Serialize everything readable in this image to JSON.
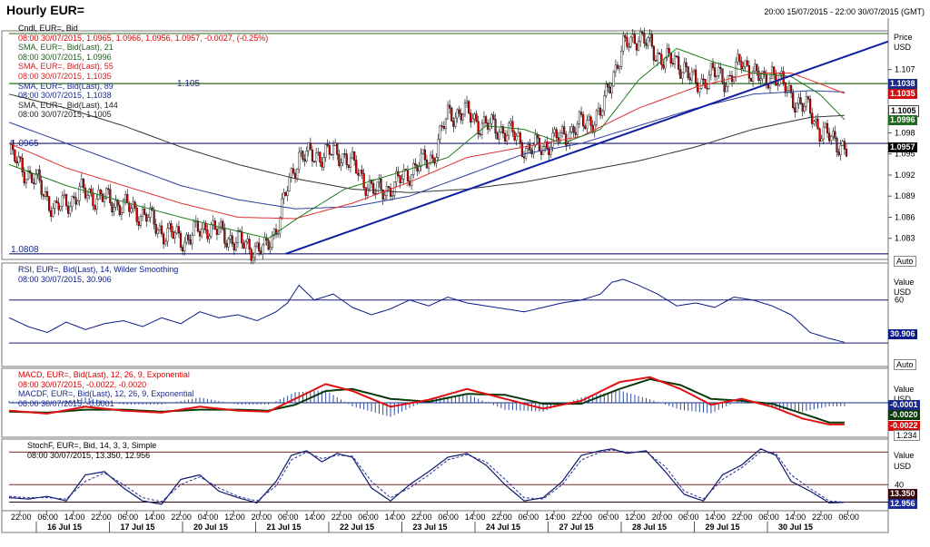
{
  "header": {
    "title": "Hourly EUR=",
    "range": "20:00 15/07/2015 - 22:00 30/07/2015 (GMT)"
  },
  "colors": {
    "up": "#ffffff",
    "down": "#d80000",
    "sma21": "#1e7a1e",
    "sma55": "#e03030",
    "sma89": "#2c3f9c",
    "sma144": "#333333",
    "trend": "#1020a0",
    "hline": "#1a1a7a",
    "hgreen": "#2d6b1f",
    "rsi": "#0a1a8a",
    "macd": "#e01010",
    "macdSignal": "#0a3a0a",
    "hist": "#2c4fa0",
    "stochK": "#0a1a6a",
    "stochD": "#2a2a9a"
  },
  "main": {
    "legend": [
      "Cndl, EUR=, Bid",
      "08:00 30/07/2015, 1.0965, 1.0966, 1.0956, 1.0957, -0.0027, (-0.25%)",
      "SMA, EUR=, Bid(Last), 21",
      "08:00 30/07/2015, 1.0996",
      "SMA, EUR=, Bid(Last), 55",
      "08:00 30/07/2015, 1.1035",
      "SMA, EUR=, Bid(Last), 89",
      "08:00 30/07/2015, 1.1038",
      "SMA, EUR=, Bid(Last), 144",
      "08:00 30/07/2015, 1.1005"
    ],
    "axis_title": [
      "Price",
      "USD"
    ],
    "ticks": [
      "1.107",
      "1.104",
      "1.101",
      "1.098",
      "1.095",
      "1.092",
      "1.089",
      "1.086",
      "1.083"
    ],
    "hline_labels": [
      "1.105",
      "1.0965",
      "1.0808"
    ],
    "value_boxes": [
      "1.1038",
      "1.1035",
      "1.1005",
      "1.0996",
      "1.0957"
    ],
    "auto_label": "Auto"
  },
  "rsi": {
    "legend": [
      "RSI, EUR=, Bid(Last), 14, Wilder Smoothing",
      "08:00 30/07/2015, 30.906"
    ],
    "axis_title": [
      "Value",
      "USD"
    ],
    "ticks": [
      "60"
    ],
    "value_box": "30.906",
    "auto_label": "Auto"
  },
  "macd": {
    "legend": [
      "MACD, EUR=, Bid(Last), 12, 26, 9, Exponential",
      "08:00 30/07/2015, -0.0022, -0.0020",
      "MACDF, EUR=, Bid(Last), 12, 26, 9, Exponential",
      "08:00 30/07/2015, -0.0001"
    ],
    "axis_title": [
      "Value",
      "USD"
    ],
    "value_boxes": [
      "-0.0001",
      "-0.0020",
      "-0.0022"
    ],
    "scale_label": "1.234"
  },
  "stoch": {
    "legend": [
      "StochF, EUR=, Bid, 14, 3, 3, Simple",
      "08:00 30/07/2015, 13.350, 12.956"
    ],
    "axis_title": [
      "Value",
      "USD"
    ],
    "ticks": [
      "40"
    ],
    "value_boxes": [
      "13.350",
      "12.956"
    ]
  },
  "xaxis": {
    "times": [
      "22:00",
      "06:00",
      "14:00",
      "22:00",
      "06:00",
      "14:00",
      "22:00",
      "04:00",
      "12:00",
      "20:00",
      "06:00",
      "14:00",
      "22:00",
      "06:00",
      "14:00",
      "22:00",
      "06:00",
      "14:00",
      "22:00",
      "06:00",
      "14:00",
      "22:00",
      "06:00",
      "12:00",
      "20:00",
      "06:00",
      "14:00",
      "22:00",
      "06:00",
      "14:00",
      "22:00",
      "06:00"
    ],
    "dates": [
      "16 Jul 15",
      "17 Jul 15",
      "20 Jul 15",
      "21 Jul 15",
      "22 Jul 15",
      "23 Jul 15",
      "24 Jul 15",
      "27 Jul 15",
      "28 Jul 15",
      "29 Jul 15",
      "30 Jul 15"
    ]
  },
  "chart_data": {
    "type": "candlestick",
    "instrument": "EUR=",
    "interval": "Hourly",
    "close_path": [
      [
        0,
        1.095
      ],
      [
        16,
        1.0905
      ],
      [
        24,
        1.087
      ],
      [
        38,
        1.0895
      ],
      [
        48,
        1.0888
      ],
      [
        60,
        1.0876
      ],
      [
        72,
        1.0862
      ],
      [
        80,
        1.084
      ],
      [
        92,
        1.0828
      ],
      [
        104,
        1.0848
      ],
      [
        112,
        1.0835
      ],
      [
        124,
        1.082
      ],
      [
        134,
        1.0812
      ],
      [
        140,
        1.0845
      ],
      [
        146,
        1.09
      ],
      [
        152,
        1.095
      ],
      [
        158,
        1.0945
      ],
      [
        166,
        1.0952
      ],
      [
        176,
        1.0948
      ],
      [
        184,
        1.092
      ],
      [
        192,
        1.0895
      ],
      [
        202,
        1.0905
      ],
      [
        212,
        1.093
      ],
      [
        222,
        1.0945
      ],
      [
        230,
        1.1005
      ],
      [
        238,
        1.101
      ],
      [
        248,
        1.0992
      ],
      [
        258,
        1.0985
      ],
      [
        264,
        1.0978
      ],
      [
        272,
        1.0955
      ],
      [
        280,
        1.0962
      ],
      [
        290,
        1.0975
      ],
      [
        300,
        1.0992
      ],
      [
        310,
        1.1005
      ],
      [
        316,
        1.106
      ],
      [
        322,
        1.11
      ],
      [
        330,
        1.112
      ],
      [
        338,
        1.1095
      ],
      [
        346,
        1.1082
      ],
      [
        354,
        1.1075
      ],
      [
        360,
        1.1045
      ],
      [
        368,
        1.1065
      ],
      [
        376,
        1.1055
      ],
      [
        384,
        1.1078
      ],
      [
        390,
        1.107
      ],
      [
        396,
        1.1048
      ],
      [
        400,
        1.107
      ],
      [
        406,
        1.1045
      ],
      [
        414,
        1.1022
      ],
      [
        420,
        1.101
      ],
      [
        425,
        1.0985
      ],
      [
        432,
        1.0968
      ],
      [
        436,
        1.0965
      ],
      [
        439,
        1.0957
      ]
    ],
    "sma21_path": [
      [
        0,
        1.0935
      ],
      [
        30,
        1.0905
      ],
      [
        60,
        1.0882
      ],
      [
        90,
        1.086
      ],
      [
        120,
        1.084
      ],
      [
        136,
        1.083
      ],
      [
        152,
        1.086
      ],
      [
        176,
        1.09
      ],
      [
        200,
        1.092
      ],
      [
        230,
        1.0945
      ],
      [
        250,
        1.099
      ],
      [
        270,
        1.0985
      ],
      [
        290,
        1.0965
      ],
      [
        310,
        1.0985
      ],
      [
        330,
        1.1055
      ],
      [
        350,
        1.11
      ],
      [
        370,
        1.108
      ],
      [
        390,
        1.1065
      ],
      [
        410,
        1.106
      ],
      [
        425,
        1.1035
      ],
      [
        439,
        1.0996
      ]
    ],
    "sma55_path": [
      [
        0,
        1.0965
      ],
      [
        30,
        1.093
      ],
      [
        60,
        1.0905
      ],
      [
        90,
        1.088
      ],
      [
        120,
        1.086
      ],
      [
        150,
        1.0858
      ],
      [
        180,
        1.088
      ],
      [
        210,
        1.091
      ],
      [
        240,
        1.0945
      ],
      [
        270,
        1.096
      ],
      [
        300,
        1.0975
      ],
      [
        330,
        1.1015
      ],
      [
        360,
        1.1045
      ],
      [
        390,
        1.1065
      ],
      [
        410,
        1.1065
      ],
      [
        425,
        1.105
      ],
      [
        439,
        1.1035
      ]
    ],
    "sma89_path": [
      [
        0,
        1.0995
      ],
      [
        30,
        1.0965
      ],
      [
        60,
        1.0935
      ],
      [
        90,
        1.0905
      ],
      [
        120,
        1.0885
      ],
      [
        150,
        1.0872
      ],
      [
        180,
        1.0875
      ],
      [
        210,
        1.089
      ],
      [
        240,
        1.092
      ],
      [
        270,
        1.095
      ],
      [
        300,
        1.0965
      ],
      [
        330,
        1.099
      ],
      [
        360,
        1.1015
      ],
      [
        390,
        1.1035
      ],
      [
        420,
        1.104
      ],
      [
        439,
        1.1038
      ]
    ],
    "sma144_path": [
      [
        0,
        1.1035
      ],
      [
        30,
        1.1015
      ],
      [
        60,
        1.099
      ],
      [
        90,
        1.096
      ],
      [
        120,
        1.0935
      ],
      [
        150,
        1.0915
      ],
      [
        180,
        1.09
      ],
      [
        210,
        1.0895
      ],
      [
        240,
        1.09
      ],
      [
        270,
        1.091
      ],
      [
        300,
        1.0925
      ],
      [
        330,
        1.094
      ],
      [
        360,
        1.096
      ],
      [
        390,
        1.0985
      ],
      [
        420,
        1.1002
      ],
      [
        439,
        1.1005
      ]
    ],
    "trendline": [
      [
        145,
        1.0808
      ],
      [
        470,
        1.111
      ]
    ],
    "horizontal_levels": [
      1.105,
      1.0965,
      1.0808
    ],
    "y_range": [
      1.08,
      1.1125
    ],
    "y_ticks": [
      1.107,
      1.104,
      1.101,
      1.098,
      1.095,
      1.092,
      1.089,
      1.086,
      1.083
    ],
    "last_close": 1.0957,
    "rsi": {
      "period": 14,
      "last": 30.906,
      "range": [
        15,
        85
      ],
      "level": 60,
      "path": [
        [
          0,
          48
        ],
        [
          10,
          42
        ],
        [
          20,
          38
        ],
        [
          30,
          45
        ],
        [
          40,
          40
        ],
        [
          50,
          44
        ],
        [
          60,
          46
        ],
        [
          70,
          42
        ],
        [
          80,
          48
        ],
        [
          90,
          44
        ],
        [
          100,
          52
        ],
        [
          110,
          48
        ],
        [
          120,
          50
        ],
        [
          130,
          46
        ],
        [
          140,
          52
        ],
        [
          146,
          58
        ],
        [
          152,
          70
        ],
        [
          160,
          60
        ],
        [
          170,
          64
        ],
        [
          180,
          55
        ],
        [
          190,
          50
        ],
        [
          200,
          54
        ],
        [
          210,
          60
        ],
        [
          220,
          56
        ],
        [
          230,
          62
        ],
        [
          240,
          58
        ],
        [
          250,
          56
        ],
        [
          260,
          54
        ],
        [
          270,
          52
        ],
        [
          280,
          55
        ],
        [
          290,
          58
        ],
        [
          300,
          60
        ],
        [
          310,
          64
        ],
        [
          316,
          72
        ],
        [
          322,
          74
        ],
        [
          330,
          70
        ],
        [
          340,
          64
        ],
        [
          350,
          56
        ],
        [
          360,
          58
        ],
        [
          370,
          55
        ],
        [
          380,
          62
        ],
        [
          390,
          60
        ],
        [
          400,
          56
        ],
        [
          410,
          50
        ],
        [
          420,
          38
        ],
        [
          430,
          34
        ],
        [
          439,
          31
        ]
      ]
    },
    "macd": {
      "last_macd": -0.0022,
      "last_signal": -0.002,
      "last_hist": -0.0001,
      "range": [
        -0.0035,
        0.0035
      ],
      "macd_path": [
        [
          0,
          -0.0008
        ],
        [
          20,
          -0.0011
        ],
        [
          40,
          -0.0004
        ],
        [
          60,
          -0.0008
        ],
        [
          80,
          -0.001
        ],
        [
          100,
          -0.0004
        ],
        [
          120,
          -0.0008
        ],
        [
          136,
          -0.0009
        ],
        [
          150,
          0.0004
        ],
        [
          166,
          0.0019
        ],
        [
          180,
          0.0012
        ],
        [
          200,
          -0.0004
        ],
        [
          220,
          0.0003
        ],
        [
          240,
          0.0014
        ],
        [
          260,
          0.0004
        ],
        [
          280,
          -0.0006
        ],
        [
          300,
          0.0002
        ],
        [
          320,
          0.0021
        ],
        [
          336,
          0.0026
        ],
        [
          352,
          0.0014
        ],
        [
          368,
          -0.0002
        ],
        [
          384,
          0.0004
        ],
        [
          400,
          -0.0004
        ],
        [
          416,
          -0.0016
        ],
        [
          430,
          -0.0022
        ],
        [
          439,
          -0.0022
        ]
      ],
      "signal_path": [
        [
          0,
          -0.0009
        ],
        [
          20,
          -0.001
        ],
        [
          40,
          -0.0007
        ],
        [
          60,
          -0.0007
        ],
        [
          80,
          -0.0009
        ],
        [
          100,
          -0.0007
        ],
        [
          120,
          -0.0007
        ],
        [
          136,
          -0.0008
        ],
        [
          150,
          -0.0002
        ],
        [
          166,
          0.0012
        ],
        [
          180,
          0.0014
        ],
        [
          200,
          0.0004
        ],
        [
          220,
          0.0001
        ],
        [
          240,
          0.0009
        ],
        [
          260,
          0.0008
        ],
        [
          280,
          -0.0001
        ],
        [
          300,
          -0.0001
        ],
        [
          320,
          0.0014
        ],
        [
          336,
          0.0024
        ],
        [
          352,
          0.0018
        ],
        [
          368,
          0.0004
        ],
        [
          384,
          0.0002
        ],
        [
          400,
          -0.0001
        ],
        [
          416,
          -0.0011
        ],
        [
          430,
          -0.002
        ],
        [
          439,
          -0.002
        ]
      ]
    },
    "stoch": {
      "last_k": 13.35,
      "last_d": 12.956,
      "range": [
        0,
        110
      ],
      "level": 40,
      "k_path": [
        [
          0,
          20
        ],
        [
          10,
          18
        ],
        [
          20,
          22
        ],
        [
          30,
          15
        ],
        [
          40,
          55
        ],
        [
          50,
          60
        ],
        [
          60,
          35
        ],
        [
          70,
          15
        ],
        [
          80,
          10
        ],
        [
          90,
          48
        ],
        [
          100,
          55
        ],
        [
          110,
          30
        ],
        [
          120,
          20
        ],
        [
          130,
          12
        ],
        [
          140,
          45
        ],
        [
          148,
          85
        ],
        [
          156,
          92
        ],
        [
          164,
          75
        ],
        [
          172,
          88
        ],
        [
          180,
          82
        ],
        [
          190,
          35
        ],
        [
          200,
          15
        ],
        [
          210,
          40
        ],
        [
          220,
          60
        ],
        [
          230,
          82
        ],
        [
          240,
          88
        ],
        [
          250,
          70
        ],
        [
          260,
          40
        ],
        [
          270,
          15
        ],
        [
          280,
          20
        ],
        [
          290,
          45
        ],
        [
          300,
          85
        ],
        [
          310,
          92
        ],
        [
          316,
          95
        ],
        [
          324,
          88
        ],
        [
          334,
          92
        ],
        [
          344,
          60
        ],
        [
          354,
          25
        ],
        [
          364,
          15
        ],
        [
          374,
          55
        ],
        [
          384,
          70
        ],
        [
          394,
          95
        ],
        [
          402,
          85
        ],
        [
          410,
          45
        ],
        [
          420,
          30
        ],
        [
          430,
          12
        ],
        [
          439,
          13
        ]
      ],
      "d_path": [
        [
          0,
          22
        ],
        [
          10,
          20
        ],
        [
          20,
          20
        ],
        [
          30,
          18
        ],
        [
          40,
          45
        ],
        [
          50,
          58
        ],
        [
          60,
          40
        ],
        [
          70,
          20
        ],
        [
          80,
          14
        ],
        [
          90,
          40
        ],
        [
          100,
          52
        ],
        [
          110,
          35
        ],
        [
          120,
          22
        ],
        [
          130,
          15
        ],
        [
          140,
          38
        ],
        [
          148,
          78
        ],
        [
          156,
          90
        ],
        [
          164,
          80
        ],
        [
          172,
          85
        ],
        [
          180,
          84
        ],
        [
          190,
          45
        ],
        [
          200,
          20
        ],
        [
          210,
          35
        ],
        [
          220,
          55
        ],
        [
          230,
          78
        ],
        [
          240,
          86
        ],
        [
          250,
          75
        ],
        [
          260,
          48
        ],
        [
          270,
          20
        ],
        [
          280,
          18
        ],
        [
          290,
          40
        ],
        [
          300,
          78
        ],
        [
          310,
          90
        ],
        [
          316,
          93
        ],
        [
          324,
          90
        ],
        [
          334,
          90
        ],
        [
          344,
          68
        ],
        [
          354,
          30
        ],
        [
          364,
          18
        ],
        [
          374,
          48
        ],
        [
          384,
          66
        ],
        [
          394,
          90
        ],
        [
          402,
          88
        ],
        [
          410,
          55
        ],
        [
          420,
          34
        ],
        [
          430,
          15
        ],
        [
          439,
          13
        ]
      ]
    }
  }
}
